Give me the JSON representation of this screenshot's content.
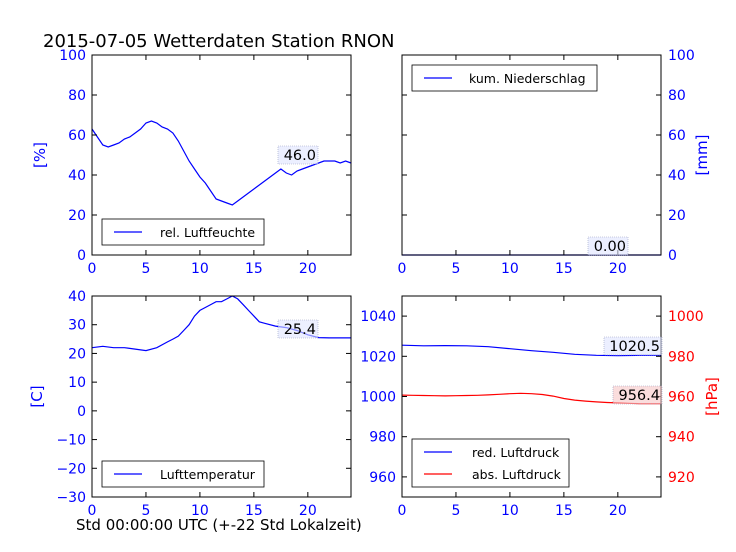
{
  "figure": {
    "title": "2015-07-05 Wetterdaten Station RNON",
    "xlabel": "Std 00:00:00 UTC (+-22 Std Lokalzeit)"
  },
  "chart_data": [
    {
      "id": "humidity",
      "type": "line",
      "ylabel": "[%]",
      "xlim": [
        0,
        24
      ],
      "ylim": [
        0,
        100
      ],
      "xticks": [
        0,
        5,
        10,
        15,
        20
      ],
      "yticks": [
        0,
        20,
        40,
        60,
        80,
        100
      ],
      "tick_color": "#0000ff",
      "legend_position": "lower-left",
      "annotation": "46.0",
      "series": [
        {
          "name": "rel. Luftfeuchte",
          "color": "#0000ff",
          "x": [
            0,
            0.5,
            1,
            1.5,
            2,
            2.5,
            3,
            3.5,
            4,
            4.5,
            5,
            5.5,
            6,
            6.5,
            7,
            7.5,
            8,
            8.5,
            9,
            9.5,
            10,
            10.5,
            11,
            11.5,
            12,
            12.5,
            13,
            13.5,
            14,
            14.5,
            15,
            15.5,
            16,
            16.5,
            17,
            17.5,
            18,
            18.5,
            19,
            19.5,
            20,
            20.5,
            21,
            21.5,
            22,
            22.5,
            23,
            23.5,
            24
          ],
          "y": [
            63,
            59,
            55,
            54,
            55,
            56,
            58,
            59,
            61,
            63,
            66,
            67,
            66,
            64,
            63,
            61,
            57,
            52,
            47,
            43,
            39,
            36,
            32,
            28,
            27,
            26,
            25,
            27,
            29,
            31,
            33,
            35,
            37,
            39,
            41,
            43,
            41,
            40,
            42,
            43,
            44,
            45,
            46,
            47,
            47,
            47,
            46,
            47,
            46
          ]
        }
      ]
    },
    {
      "id": "precipitation",
      "type": "line",
      "ylabel": "[mm]",
      "xlim": [
        0,
        24
      ],
      "ylim": [
        0,
        100
      ],
      "xticks": [
        0,
        5,
        10,
        15,
        20
      ],
      "yticks": [
        0,
        20,
        40,
        60,
        80,
        100
      ],
      "tick_color": "#0000ff",
      "y_axis_side": "right",
      "legend_position": "upper-left",
      "annotation": "0.00",
      "series": [
        {
          "name": "kum. Niederschlag",
          "color": "#0000ff",
          "x": [
            0,
            24
          ],
          "y": [
            0,
            0
          ]
        }
      ]
    },
    {
      "id": "temperature",
      "type": "line",
      "ylabel": "[C]",
      "xlim": [
        0,
        24
      ],
      "ylim": [
        -30,
        40
      ],
      "xticks": [
        0,
        5,
        10,
        15,
        20
      ],
      "yticks": [
        -30,
        -20,
        -10,
        0,
        10,
        20,
        30,
        40
      ],
      "tick_color": "#0000ff",
      "legend_position": "lower-left",
      "annotation": "25.4",
      "series": [
        {
          "name": "Lufttemperatur",
          "color": "#0000ff",
          "x": [
            0,
            1,
            2,
            3,
            4,
            5,
            6,
            7,
            7.5,
            8,
            8.5,
            9,
            9.5,
            10,
            10.5,
            11,
            11.5,
            12,
            12.5,
            13,
            13.5,
            14,
            14.5,
            15,
            15.5,
            16,
            17,
            18,
            19,
            20,
            21,
            22,
            23,
            24
          ],
          "y": [
            22,
            22.5,
            22,
            22,
            21.5,
            21,
            22,
            24,
            25,
            26,
            28,
            30,
            33,
            35,
            36,
            37,
            38,
            38,
            39,
            40,
            39,
            37,
            35,
            33,
            31,
            30.5,
            29.5,
            29,
            28,
            26.5,
            25.5,
            25.4,
            25.4,
            25.4
          ]
        }
      ]
    },
    {
      "id": "pressure",
      "type": "line",
      "ylabel": "[hPa]",
      "xlim": [
        0,
        24
      ],
      "ylim": [
        950,
        1050
      ],
      "xticks": [
        0,
        5,
        10,
        15,
        20
      ],
      "yticks": [
        960,
        980,
        1000,
        1020,
        1040
      ],
      "tick_color": "#0000ff",
      "y2lim": [
        910,
        1010
      ],
      "y2ticks": [
        920,
        940,
        960,
        980,
        1000
      ],
      "y2_tick_color": "#ff0000",
      "ylabel_color": "#ff0000",
      "legend_position": "lower-left",
      "annotations": [
        "1020.5",
        "956.4"
      ],
      "series": [
        {
          "name": "red. Luftdruck",
          "color": "#0000ff",
          "axis": "left",
          "x": [
            0,
            2,
            4,
            6,
            8,
            10,
            12,
            14,
            16,
            18,
            20,
            22,
            24
          ],
          "y": [
            1025.5,
            1025.2,
            1025.3,
            1025.2,
            1024.8,
            1023.8,
            1022.8,
            1022,
            1021,
            1020.5,
            1020.3,
            1020.5,
            1020.5
          ]
        },
        {
          "name": "abs. Luftdruck",
          "color": "#ff0000",
          "axis": "right",
          "x": [
            0,
            1,
            2,
            3,
            4,
            5,
            6,
            7,
            8,
            9,
            10,
            11,
            12,
            13,
            14,
            15,
            16,
            17,
            18,
            19,
            20,
            21,
            22,
            23,
            24
          ],
          "y": [
            960.7,
            960.6,
            960.5,
            960.4,
            960.3,
            960.4,
            960.5,
            960.6,
            960.8,
            961.1,
            961.4,
            961.6,
            961.4,
            961,
            960.2,
            959,
            958.2,
            957.7,
            957.3,
            957,
            956.8,
            956.6,
            956.4,
            956.4,
            956.4
          ]
        }
      ]
    }
  ]
}
